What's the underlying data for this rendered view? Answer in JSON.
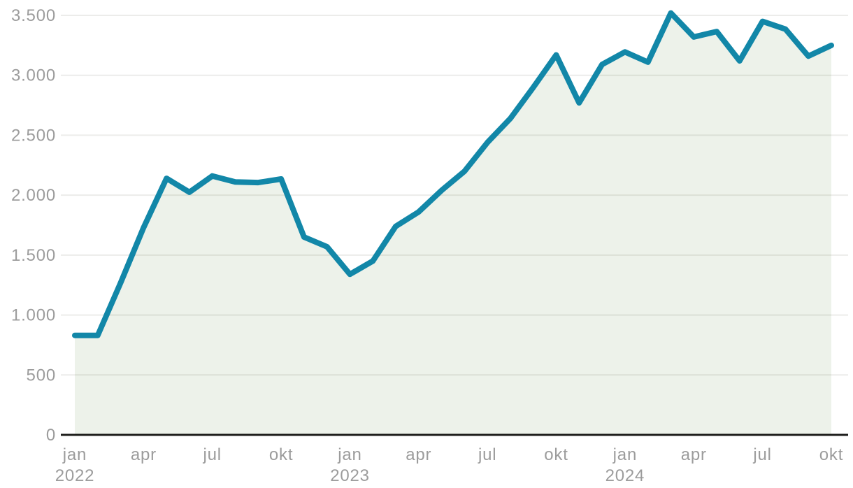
{
  "chart_data": {
    "type": "area",
    "title": "",
    "xlabel": "",
    "ylabel": "",
    "ylim": [
      0,
      3500
    ],
    "grid": true,
    "legend": false,
    "categories": [
      "2022-01",
      "2022-02",
      "2022-03",
      "2022-04",
      "2022-05",
      "2022-06",
      "2022-07",
      "2022-08",
      "2022-09",
      "2022-10",
      "2022-11",
      "2022-12",
      "2023-01",
      "2023-02",
      "2023-03",
      "2023-04",
      "2023-05",
      "2023-06",
      "2023-07",
      "2023-08",
      "2023-09",
      "2023-10",
      "2023-11",
      "2023-12",
      "2024-01",
      "2024-02",
      "2024-03",
      "2024-04",
      "2024-05",
      "2024-06",
      "2024-07",
      "2024-08",
      "2024-09",
      "2024-10"
    ],
    "values": [
      830,
      830,
      1270,
      1730,
      2140,
      2025,
      2160,
      2110,
      2105,
      2135,
      1650,
      1570,
      1340,
      1450,
      1740,
      1860,
      2040,
      2200,
      2440,
      2640,
      2900,
      3170,
      2770,
      3090,
      3195,
      3110,
      3520,
      3320,
      3365,
      3120,
      3450,
      3385,
      3160,
      3250
    ],
    "y_ticks": [
      {
        "value": 0,
        "label": "0"
      },
      {
        "value": 500,
        "label": "500"
      },
      {
        "value": 1000,
        "label": "1.000"
      },
      {
        "value": 1500,
        "label": "1.500"
      },
      {
        "value": 2000,
        "label": "2.000"
      },
      {
        "value": 2500,
        "label": "2.500"
      },
      {
        "value": 3000,
        "label": "3.000"
      },
      {
        "value": 3500,
        "label": "3.500"
      }
    ],
    "x_ticks": [
      {
        "index": 0,
        "label": "jan",
        "year": "2022"
      },
      {
        "index": 3,
        "label": "apr"
      },
      {
        "index": 6,
        "label": "jul"
      },
      {
        "index": 9,
        "label": "okt"
      },
      {
        "index": 12,
        "label": "jan",
        "year": "2023"
      },
      {
        "index": 15,
        "label": "apr"
      },
      {
        "index": 18,
        "label": "jul"
      },
      {
        "index": 21,
        "label": "okt"
      },
      {
        "index": 24,
        "label": "jan",
        "year": "2024"
      },
      {
        "index": 27,
        "label": "apr"
      },
      {
        "index": 30,
        "label": "jul"
      },
      {
        "index": 33,
        "label": "okt"
      }
    ],
    "colors": {
      "line": "#1287a8",
      "fill": "#edf2ea",
      "grid": "rgba(40,40,25,0.09)",
      "axis": "#1d1d1b",
      "tick_text": "#9c9c9c",
      "background": "#ffffff"
    }
  }
}
